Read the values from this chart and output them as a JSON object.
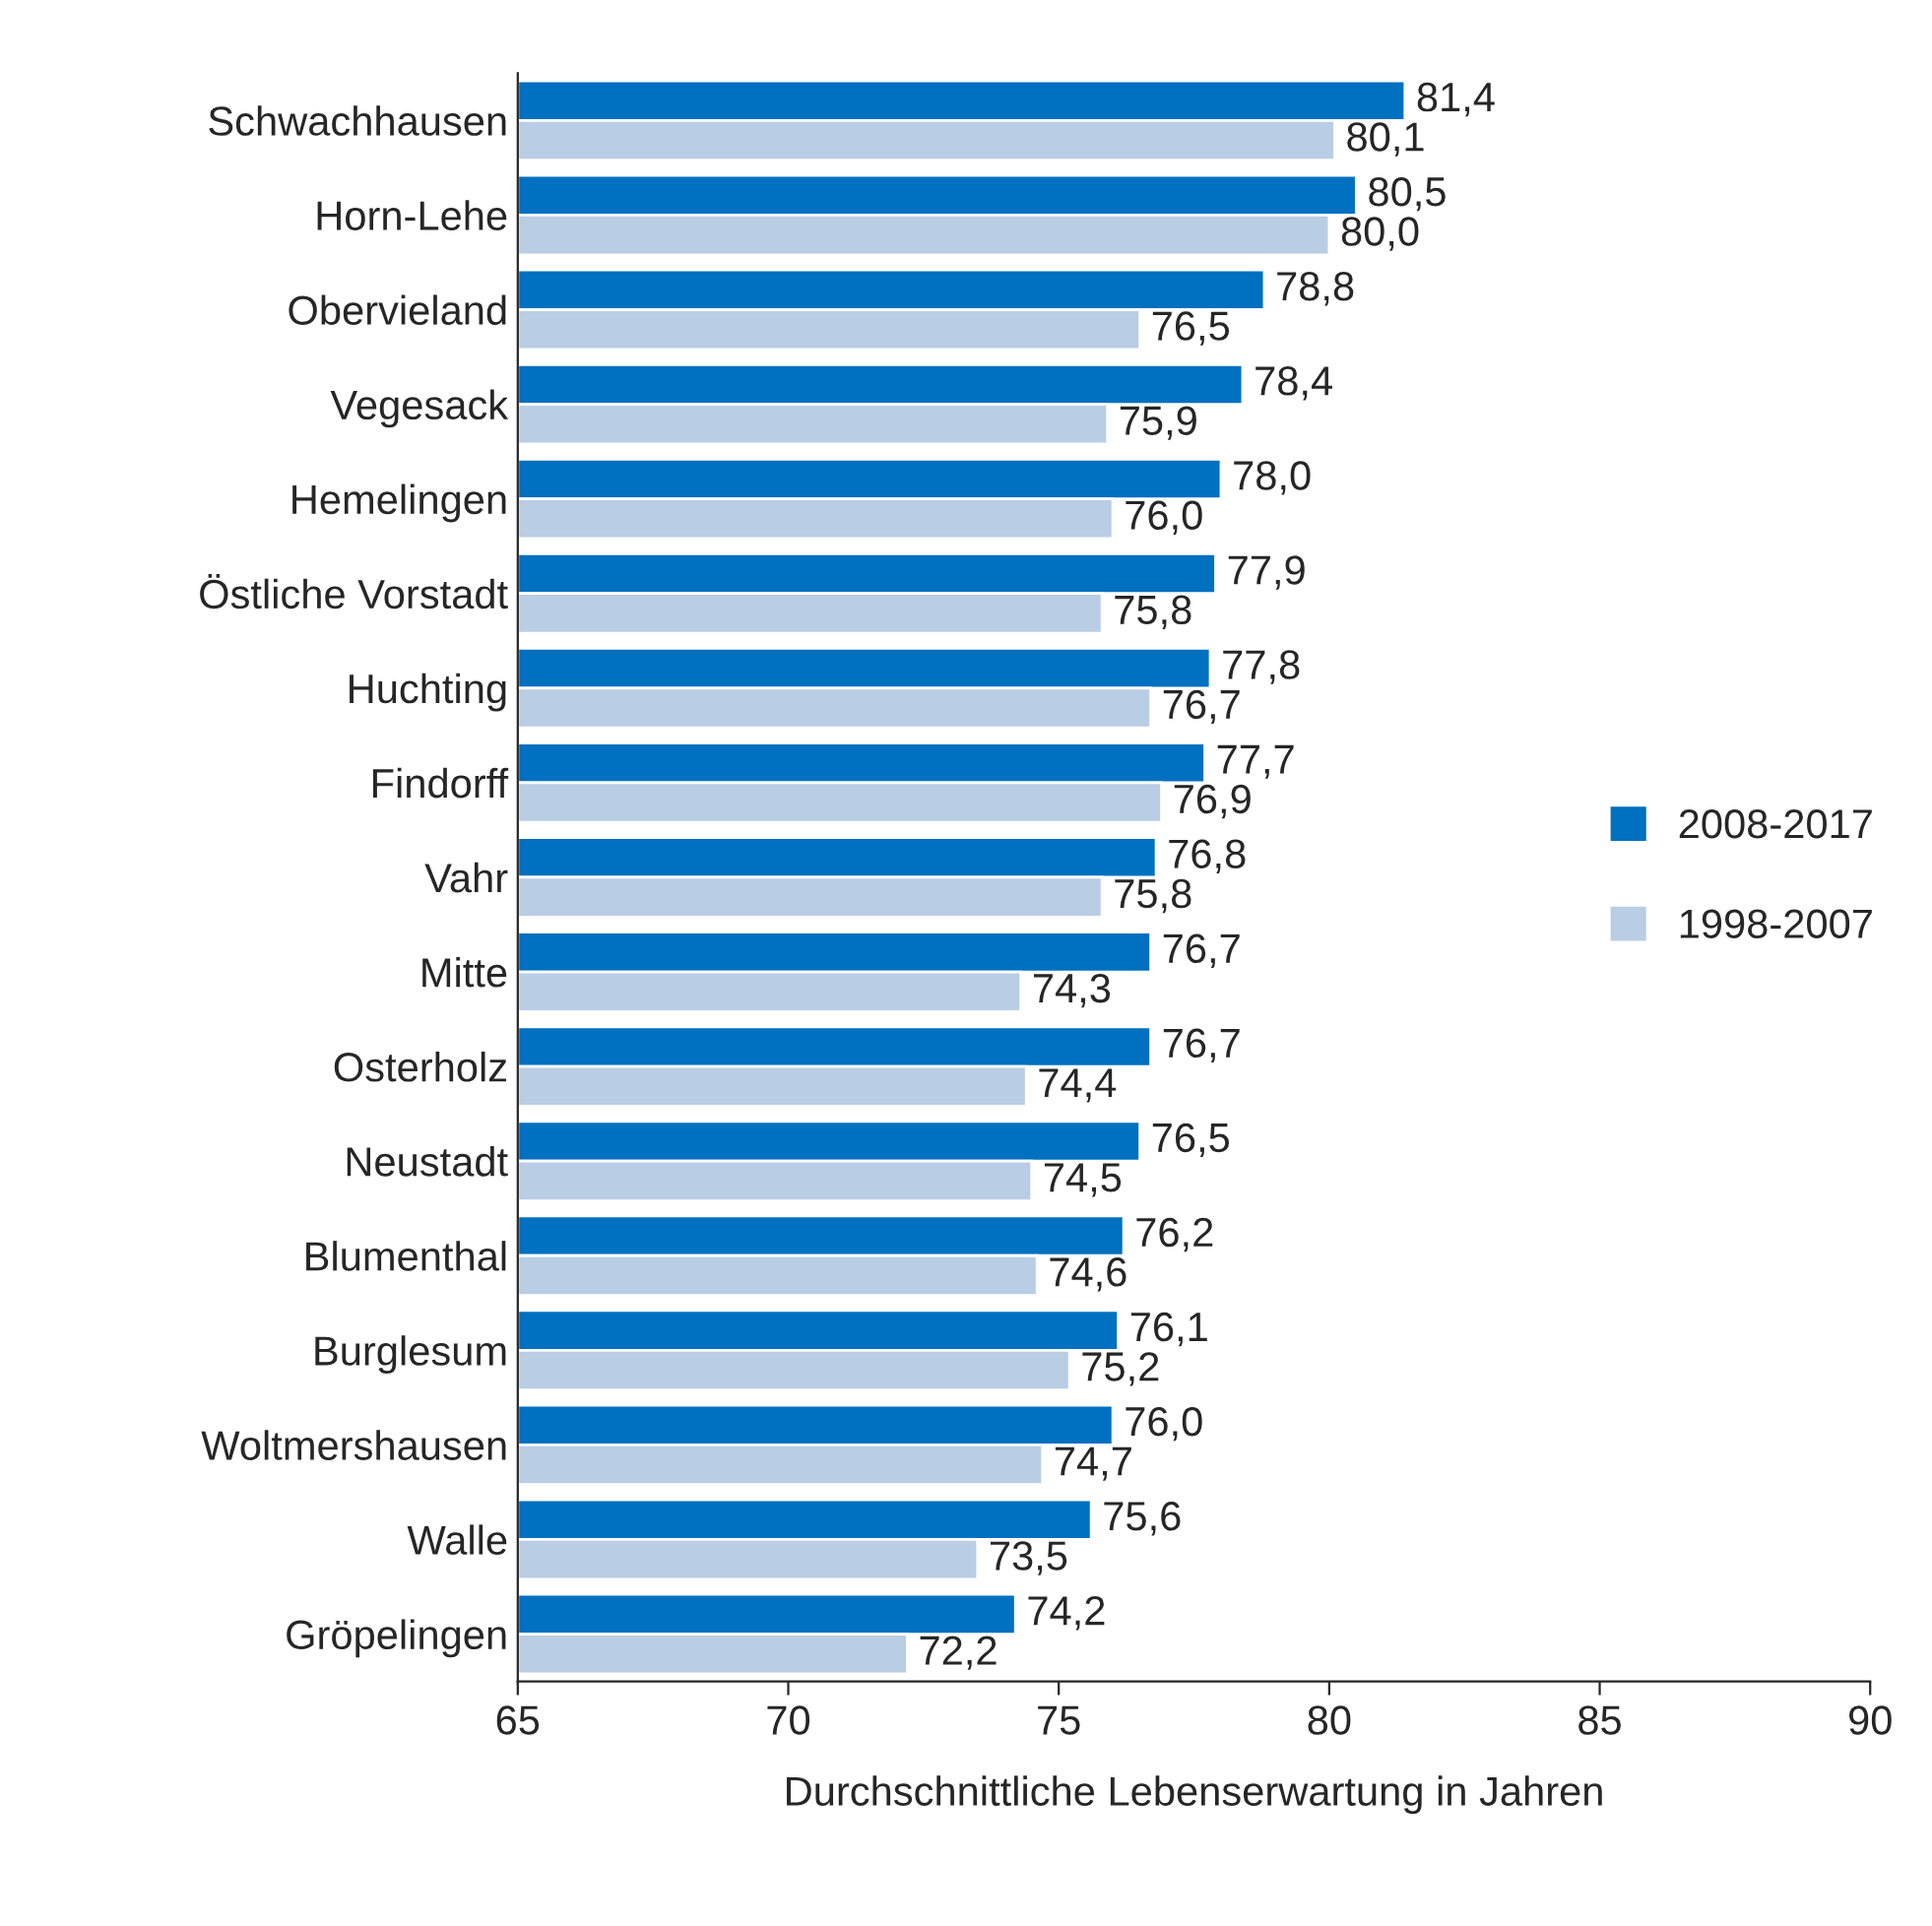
{
  "chart_data": {
    "type": "bar",
    "orientation": "horizontal",
    "xlabel": "Durchschnittliche Lebenserwartung in Jahren",
    "categories": [
      "Schwachhausen",
      "Horn-Lehe",
      "Obervieland",
      "Vegesack",
      "Hemelingen",
      "Östliche Vorstadt",
      "Huchting",
      "Findorff",
      "Vahr",
      "Mitte",
      "Osterholz",
      "Neustadt",
      "Blumenthal",
      "Burglesum",
      "Woltmershausen",
      "Walle",
      "Gröpelingen"
    ],
    "series": [
      {
        "name": "2008-2017",
        "color": "#0070c0",
        "values": [
          81.4,
          80.5,
          78.8,
          78.4,
          78.0,
          77.9,
          77.8,
          77.7,
          76.8,
          76.7,
          76.7,
          76.5,
          76.2,
          76.1,
          76.0,
          75.6,
          74.2
        ],
        "value_labels": [
          "81,4",
          "80,5",
          "78,8",
          "78,4",
          "78,0",
          "77,9",
          "77,8",
          "77,7",
          "76,8",
          "76,7",
          "76,7",
          "76,5",
          "76,2",
          "76,1",
          "76,0",
          "75,6",
          "74,2"
        ]
      },
      {
        "name": "1998-2007",
        "color": "#b9cde5",
        "values": [
          80.1,
          80.0,
          76.5,
          75.9,
          76.0,
          75.8,
          76.7,
          76.9,
          75.8,
          74.3,
          74.4,
          74.5,
          74.6,
          75.2,
          74.7,
          73.5,
          72.2
        ],
        "value_labels": [
          "80,1",
          "80,0",
          "76,5",
          "75,9",
          "76,0",
          "75,8",
          "76,7",
          "76,9",
          "75,8",
          "74,3",
          "74,4",
          "74,5",
          "74,6",
          "75,2",
          "74,7",
          "73,5",
          "72,2"
        ]
      }
    ],
    "xlim": [
      65,
      90
    ],
    "xticks": [
      65,
      70,
      75,
      80,
      85,
      90
    ],
    "grid": false,
    "legend": "right"
  }
}
